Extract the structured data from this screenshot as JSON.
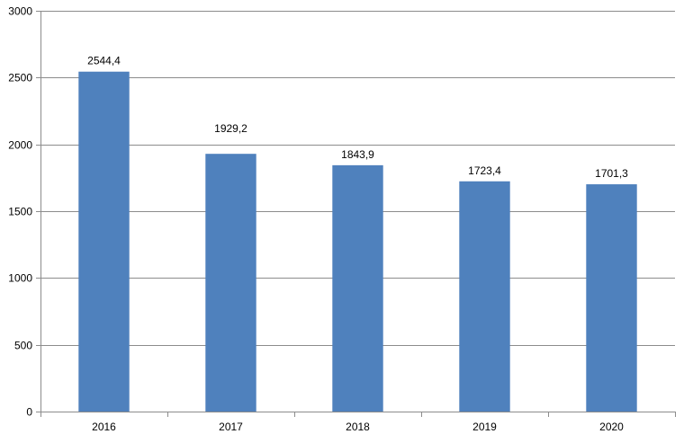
{
  "chart_data": {
    "type": "bar",
    "title": "",
    "xlabel": "",
    "ylabel": "",
    "categories": [
      "2016",
      "2017",
      "2018",
      "2019",
      "2020"
    ],
    "values": [
      2544.4,
      1929.2,
      1843.9,
      1723.4,
      1701.3
    ],
    "data_labels": [
      "2544,4",
      "1929,2",
      "1843,9",
      "1723,4",
      "1701,3"
    ],
    "ylim": [
      0,
      3000
    ],
    "y_ticks": [
      0,
      500,
      1000,
      1500,
      2000,
      2500,
      3000
    ],
    "grid": true,
    "legend": "none",
    "bar_color": "#4F81BD",
    "grid_color": "#8C8C8C"
  }
}
